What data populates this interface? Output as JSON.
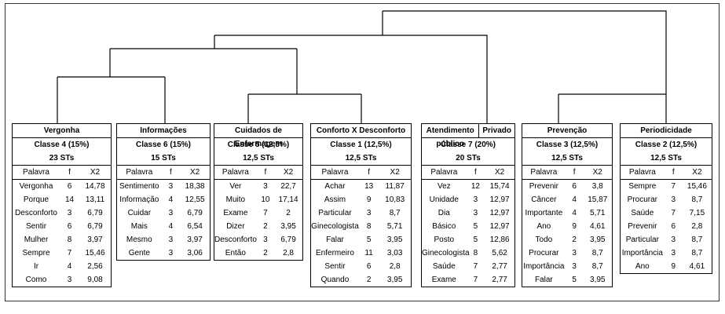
{
  "boxes": [
    {
      "title": "Vergonha",
      "classe": "Classe 4 (15%)",
      "sts": "23 STs",
      "headers": [
        "Palavra",
        "f",
        "X2"
      ],
      "rows": [
        [
          "Vergonha",
          "6",
          "14,78"
        ],
        [
          "Porque",
          "14",
          "13,11"
        ],
        [
          "Desconforto",
          "3",
          "6,79"
        ],
        [
          "Sentir",
          "6",
          "6,79"
        ],
        [
          "Mulher",
          "8",
          "3,97"
        ],
        [
          "Sempre",
          "7",
          "15,46"
        ],
        [
          "Ir",
          "4",
          "2,56"
        ],
        [
          "Como",
          "3",
          "9,08"
        ]
      ]
    },
    {
      "title": "Informações",
      "classe": "Classe 6 (15%)",
      "sts": "15 STs",
      "headers": [
        "Palavra",
        "f",
        "X2"
      ],
      "rows": [
        [
          "Sentimento",
          "3",
          "18,38"
        ],
        [
          "Informação",
          "4",
          "12,55"
        ],
        [
          "Cuidar",
          "3",
          "6,79"
        ],
        [
          "Mais",
          "4",
          "6,54"
        ],
        [
          "Mesmo",
          "3",
          "3,97"
        ],
        [
          "Gente",
          "3",
          "3,06"
        ]
      ]
    },
    {
      "title": "Cuidados de Enfermagem",
      "classe": "Classe 5 (12,5%)",
      "sts": "12,5 STs",
      "headers": [
        "Palavra",
        "f",
        "X2"
      ],
      "rows": [
        [
          "Ver",
          "3",
          "22,7"
        ],
        [
          "Muito",
          "10",
          "17,14"
        ],
        [
          "Exame",
          "7",
          "2"
        ],
        [
          "Dizer",
          "2",
          "3,95"
        ],
        [
          "Desconforto",
          "3",
          "6,79"
        ],
        [
          "Então",
          "2",
          "2,8"
        ]
      ]
    },
    {
      "title": "Conforto X Desconforto",
      "classe": "Classe 1 (12,5%)",
      "sts": "12,5 STs",
      "headers": [
        "Palavra",
        "f",
        "X2"
      ],
      "rows": [
        [
          "Achar",
          "13",
          "11,87"
        ],
        [
          "Assim",
          "9",
          "10,83"
        ],
        [
          "Particular",
          "3",
          "8,7"
        ],
        [
          "Ginecologista",
          "8",
          "5,71"
        ],
        [
          "Falar",
          "5",
          "3,95"
        ],
        [
          "Enfermeiro",
          "11",
          "3,03"
        ],
        [
          "Sentir",
          "6",
          "2,8"
        ],
        [
          "Quando",
          "2",
          "3,95"
        ]
      ]
    },
    {
      "title": "Atendimento público",
      "title2": "Privado",
      "classe": "Classe 7 (20%)",
      "sts": "20 STs",
      "headers": [
        "Palavra",
        "f",
        "X2"
      ],
      "rows": [
        [
          "Vez",
          "12",
          "15,74"
        ],
        [
          "Unidade",
          "3",
          "12,97"
        ],
        [
          "Dia",
          "3",
          "12,97"
        ],
        [
          "Básico",
          "5",
          "12,97"
        ],
        [
          "Posto",
          "5",
          "12,86"
        ],
        [
          "Ginecologista",
          "8",
          "5,62"
        ],
        [
          "Saúde",
          "7",
          "2,77"
        ],
        [
          "Exame",
          "7",
          "2,77"
        ]
      ]
    },
    {
      "title": "Prevenção",
      "classe": "Classe 3 (12,5%)",
      "sts": "12,5 STs",
      "headers": [
        "Palavra",
        "f",
        "X2"
      ],
      "rows": [
        [
          "Prevenir",
          "6",
          "3,8"
        ],
        [
          "Câncer",
          "4",
          "15,87"
        ],
        [
          "Importante",
          "4",
          "5,71"
        ],
        [
          "Ano",
          "9",
          "4,61"
        ],
        [
          "Todo",
          "2",
          "3,95"
        ],
        [
          "Procurar",
          "3",
          "8,7"
        ],
        [
          "Importância",
          "3",
          "8,7"
        ],
        [
          "Falar",
          "5",
          "3,95"
        ]
      ]
    },
    {
      "title": "Periodicidade",
      "classe": "Classe 2 (12,5%)",
      "sts": "12,5 STs",
      "headers": [
        "Palavra",
        "f",
        "X2"
      ],
      "rows": [
        [
          "Sempre",
          "7",
          "15,46"
        ],
        [
          "Procurar",
          "3",
          "8,7"
        ],
        [
          "Saúde",
          "7",
          "7,15"
        ],
        [
          "Prevenir",
          "6",
          "2,8"
        ],
        [
          "Particular",
          "3",
          "8,7"
        ],
        [
          "Importância",
          "3",
          "8,7"
        ],
        [
          "Ano",
          "9",
          "4,61"
        ]
      ]
    }
  ]
}
